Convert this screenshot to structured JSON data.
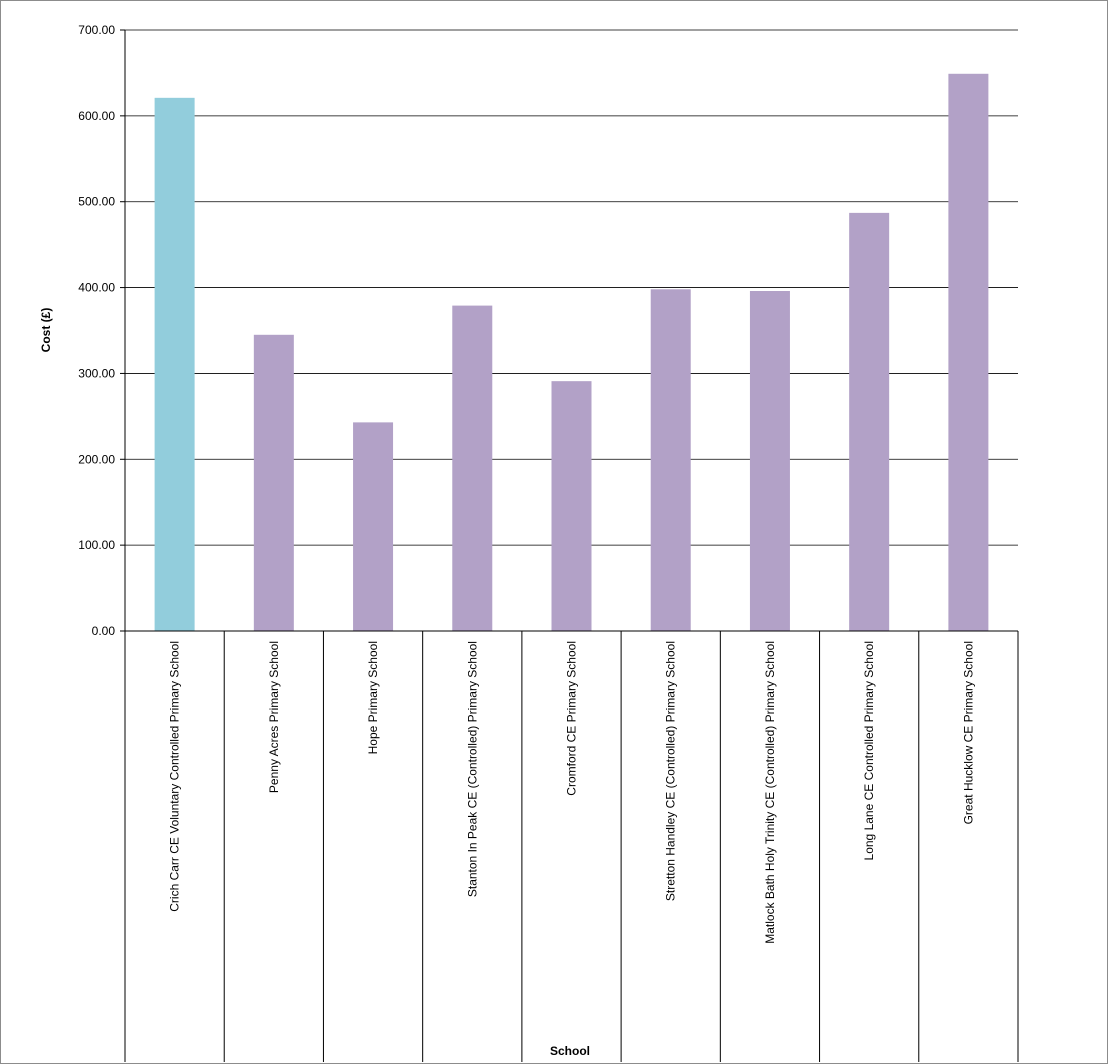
{
  "chart_data": {
    "type": "bar",
    "title": "",
    "xlabel": "School",
    "ylabel": "Cost (£)",
    "ylim": [
      0,
      700
    ],
    "y_ticks": [
      "0.00",
      "100.00",
      "200.00",
      "300.00",
      "400.00",
      "500.00",
      "600.00",
      "700.00"
    ],
    "grid": true,
    "categories": [
      "Crich Carr CE Voluntary Controlled Primary School",
      "Penny Acres Primary School",
      "Hope Primary School",
      "Stanton In Peak CE (Controlled) Primary School",
      "Cromford CE Primary School",
      "Stretton Handley CE (Controlled) Primary School",
      "Matlock Bath Holy Trinity CE (Controlled) Primary School",
      "Long Lane CE Controlled Primary School",
      "Great Hucklow CE Primary School"
    ],
    "values": [
      621,
      345,
      243,
      379,
      291,
      398,
      396,
      487,
      649
    ],
    "colors": [
      "#92cddc",
      "#b2a1c7",
      "#b2a1c7",
      "#b2a1c7",
      "#b2a1c7",
      "#b2a1c7",
      "#b2a1c7",
      "#b2a1c7",
      "#b2a1c7"
    ],
    "highlight_color": "#92cddc",
    "bar_color": "#b2a1c7"
  }
}
